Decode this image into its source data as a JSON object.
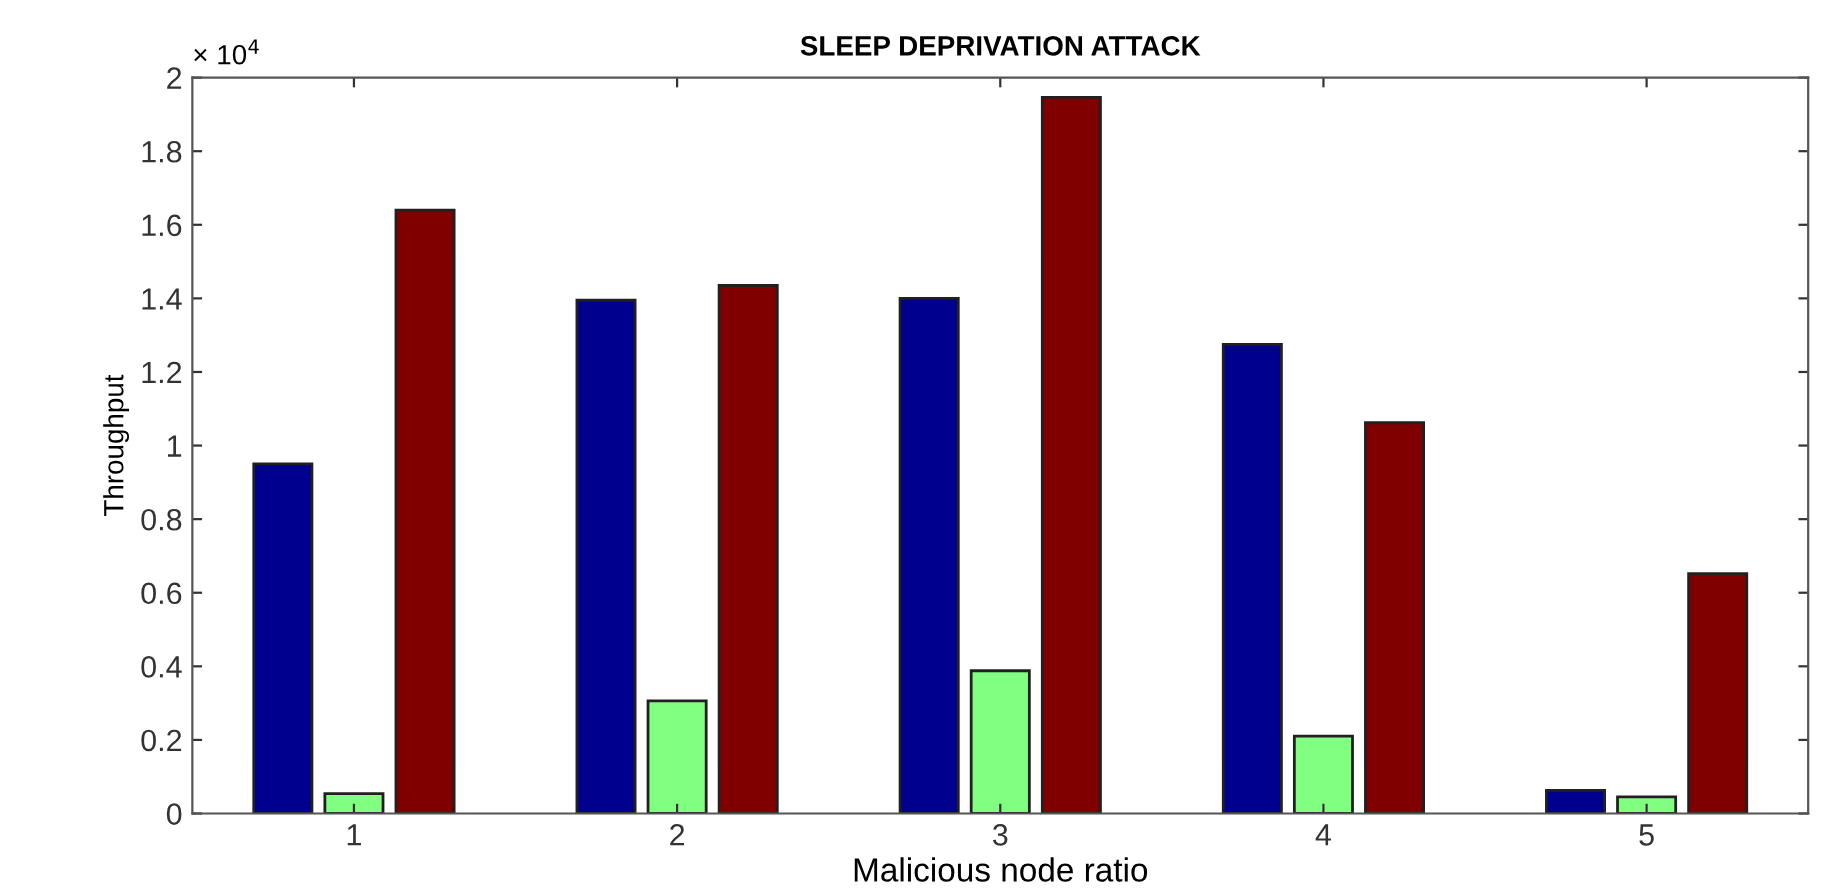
{
  "chart_data": {
    "type": "bar",
    "title": "SLEEP DEPRIVATION ATTACK",
    "xlabel": "Malicious node ratio",
    "ylabel": "Throughput",
    "annotations": [
      "× 10$^{4}$"
    ],
    "categories": [
      "1",
      "2",
      "3",
      "4",
      "5"
    ],
    "series": [
      {
        "color": "#00008f",
        "values": [
          0.95,
          1.395,
          1.4,
          1.275,
          0.063
        ]
      },
      {
        "color": "#80ff80",
        "values": [
          0.054,
          0.306,
          0.388,
          0.21,
          0.045
        ]
      },
      {
        "color": "#800000",
        "values": [
          1.64,
          1.435,
          1.946,
          1.062,
          0.652
        ]
      }
    ],
    "ylim": [
      0,
      2
    ],
    "yticks": [
      {
        "value": 0,
        "label": "0"
      },
      0.2,
      0.4,
      0.6,
      0.8,
      {
        "value": 1,
        "label": "1"
      },
      1.2,
      1.4,
      1.6,
      1.8,
      {
        "value": 2,
        "label": "2"
      }
    ],
    "grid": false,
    "legend": false
  }
}
